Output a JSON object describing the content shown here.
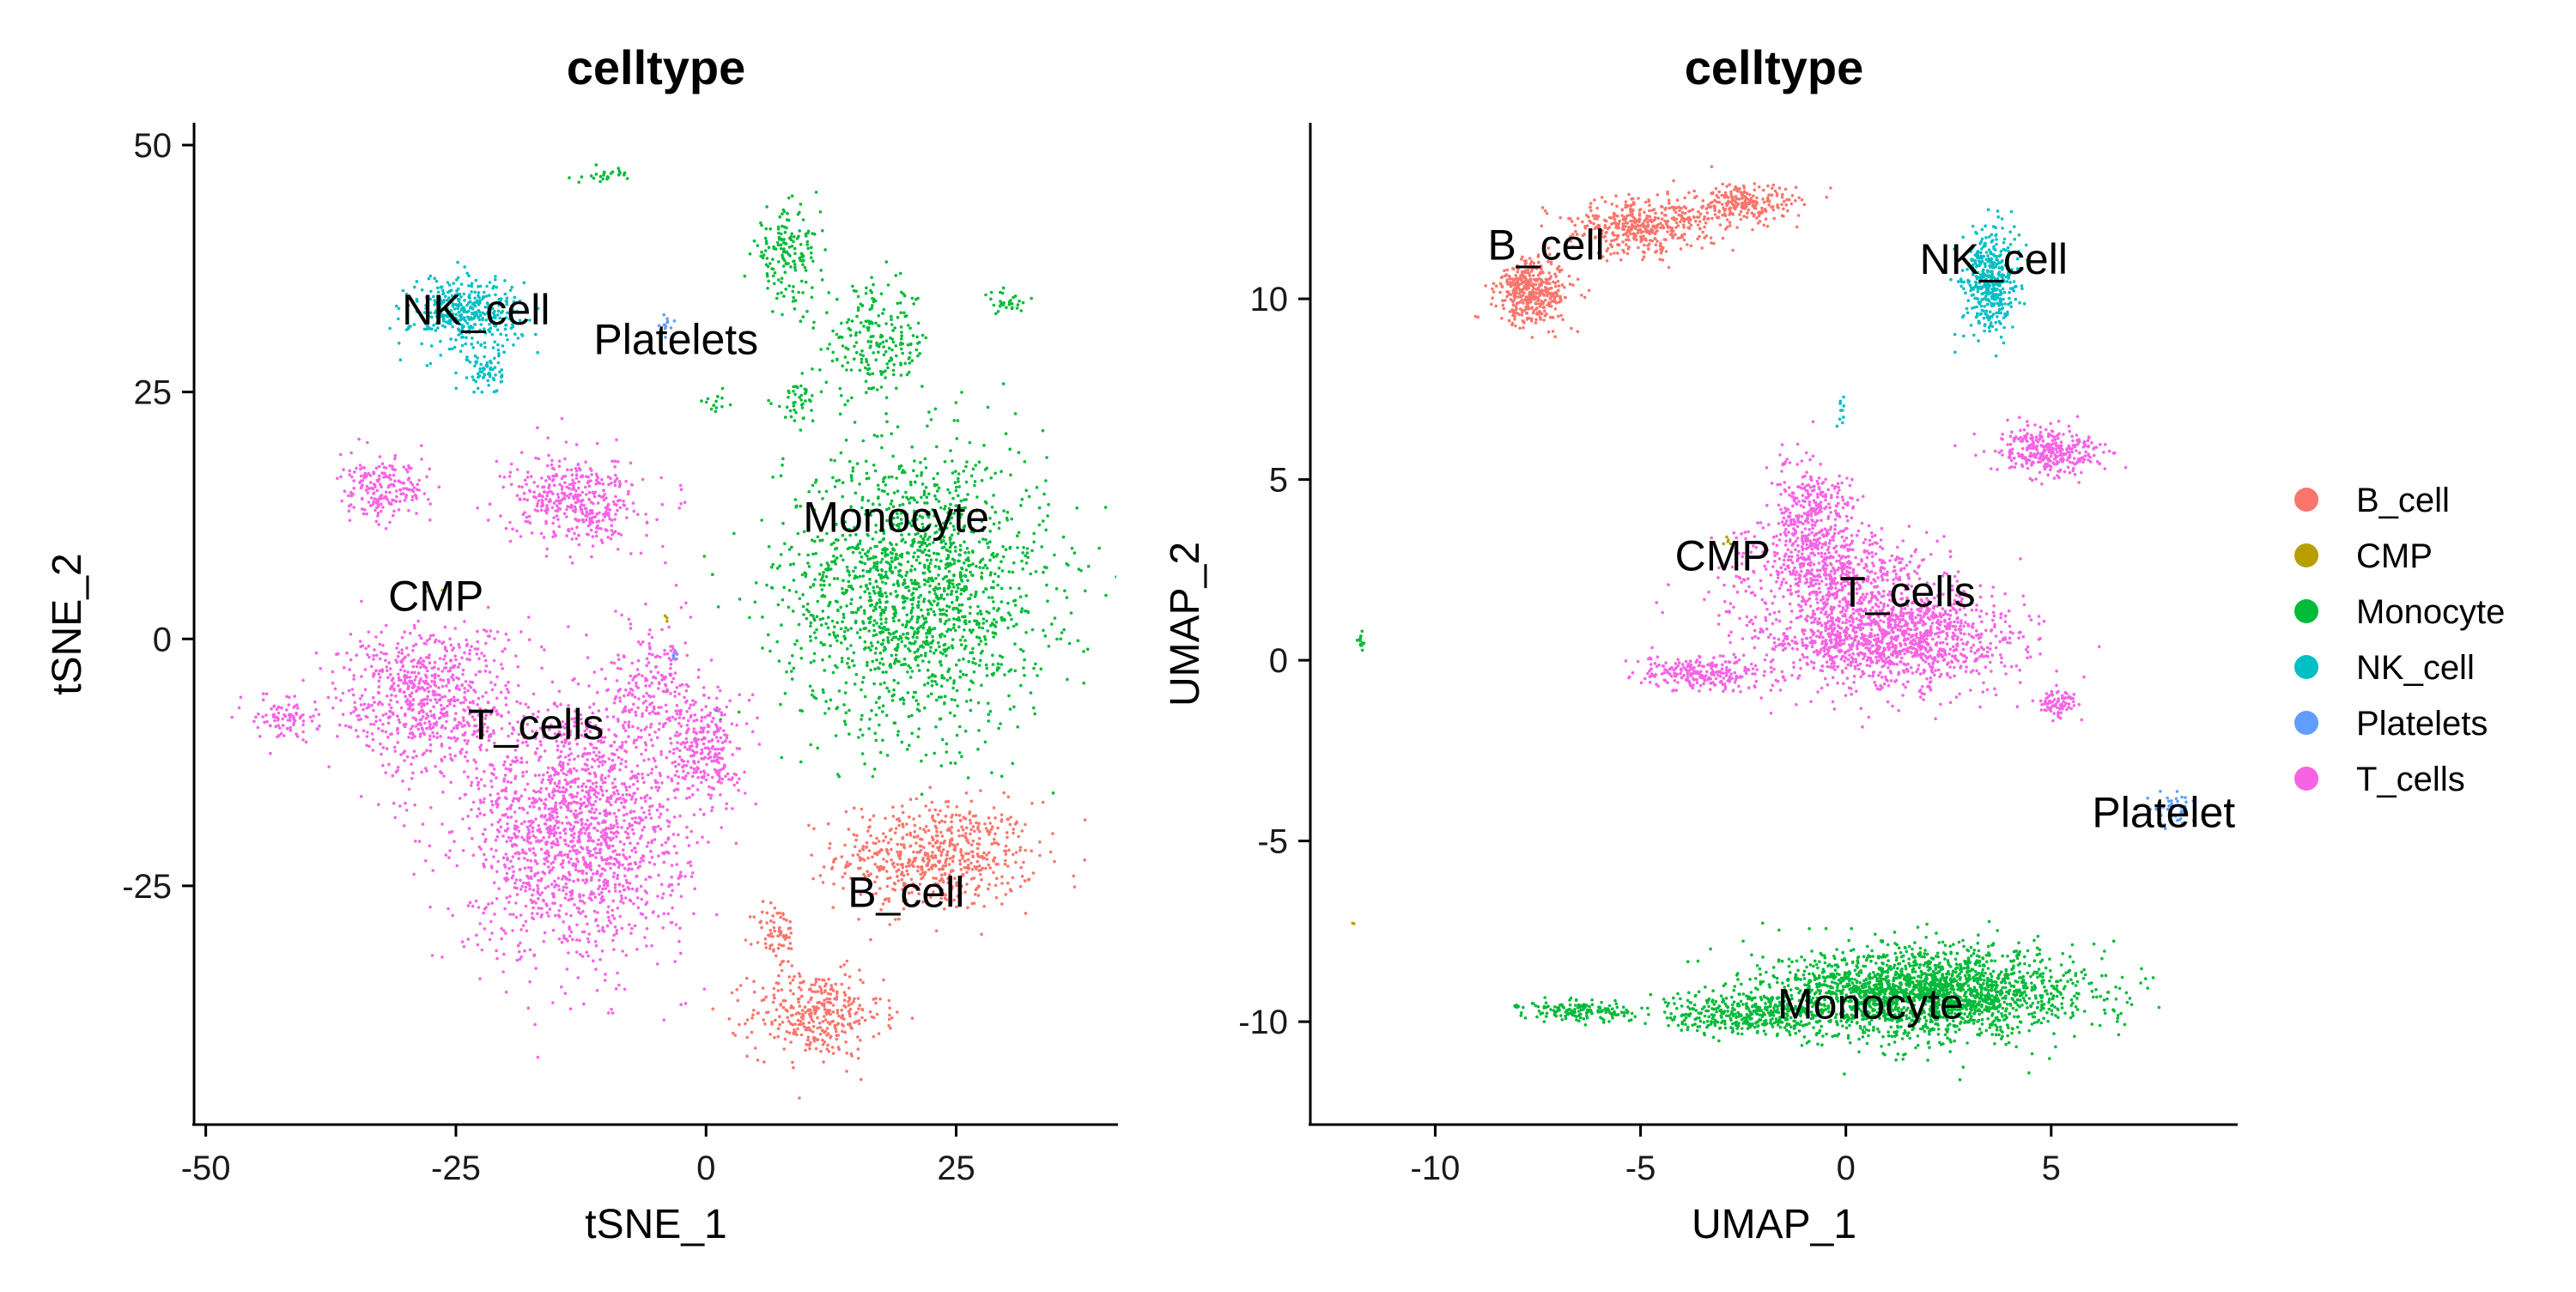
{
  "chart_data": [
    {
      "type": "scatter",
      "title": "celltype",
      "xlabel": "tSNE_1",
      "ylabel": "tSNE_2",
      "xlim": [
        -51,
        41
      ],
      "ylim": [
        -49,
        52
      ],
      "xticks": [
        -50,
        -25,
        0,
        25
      ],
      "yticks": [
        -25,
        0,
        25,
        50
      ],
      "xtick_labels": [
        "-50",
        "-25",
        "0",
        "25"
      ],
      "ytick_labels": [
        "-25",
        "0",
        "25",
        "50"
      ],
      "grid": false,
      "clusters": [
        {
          "label": "B_cell",
          "color": "#F8766D",
          "label_pos": [
            20,
            -26
          ],
          "blobs": [
            [
              23,
              -22,
              9,
              5,
              620
            ],
            [
              11,
              -38,
              6,
              4,
              360
            ],
            [
              7,
              -30,
              2,
              3,
              70
            ]
          ]
        },
        {
          "label": "CMP",
          "color": "#B79F00",
          "label_pos": [
            -27,
            4
          ],
          "blobs": [
            [
              -26,
              5,
              0.4,
              0.4,
              4
            ],
            [
              -4,
              2,
              0.3,
              0.3,
              3
            ]
          ]
        },
        {
          "label": "Monocyte",
          "color": "#00BA38",
          "label_pos": [
            19,
            12
          ],
          "blobs": [
            [
              21,
              5,
              12,
              13,
              1700
            ],
            [
              8,
              39,
              3,
              4,
              160
            ],
            [
              17,
              30,
              5,
              5,
              220
            ],
            [
              9,
              24,
              2,
              2,
              40
            ],
            [
              30,
              34,
              2,
              1,
              30
            ],
            [
              1,
              24,
              1,
              1,
              15
            ],
            [
              -10,
              47,
              2,
              0.6,
              25
            ]
          ]
        },
        {
          "label": "NK_cell",
          "color": "#00BFC4",
          "label_pos": [
            -23,
            33
          ],
          "blobs": [
            [
              -24,
              33,
              5,
              3.5,
              380
            ],
            [
              -22,
              27,
              1.5,
              2,
              60
            ]
          ]
        },
        {
          "label": "Platelets",
          "color": "#619CFF",
          "label_pos": [
            -3,
            30
          ],
          "blobs": [
            [
              -4,
              32,
              0.5,
              1,
              12
            ],
            [
              -3,
              -2,
              0.3,
              0.8,
              8
            ]
          ]
        },
        {
          "label": "T_cells",
          "color": "#F564E3",
          "label_pos": [
            -17,
            -9
          ],
          "blobs": [
            [
              -13,
              -19,
              10,
              12,
              1700
            ],
            [
              -28,
              -6,
              8,
              7,
              700
            ],
            [
              -13,
              14,
              6,
              4,
              420
            ],
            [
              -32,
              15,
              4,
              3,
              200
            ],
            [
              0,
              -11,
              3,
              5,
              240
            ],
            [
              -42,
              -8,
              3,
              2,
              90
            ],
            [
              -5,
              -5,
              4,
              6,
              200
            ]
          ]
        }
      ]
    },
    {
      "type": "scatter",
      "title": "celltype",
      "xlabel": "UMAP_1",
      "ylabel": "UMAP_2",
      "xlim": [
        -13,
        9.5
      ],
      "ylim": [
        -12.8,
        14.8
      ],
      "xticks": [
        -10,
        -5,
        0,
        5
      ],
      "yticks": [
        -10,
        -5,
        0,
        5,
        10
      ],
      "xtick_labels": [
        "-10",
        "-5",
        "0",
        "5"
      ],
      "ytick_labels": [
        "-10",
        "-5",
        "0",
        "5",
        "10"
      ],
      "grid": false,
      "clusters": [
        {
          "label": "B_cell",
          "color": "#F8766D",
          "label_pos": [
            -7.3,
            11.4
          ],
          "blobs": [
            [
              -7.6,
              10.2,
              0.8,
              0.8,
              420
            ],
            [
              -5,
              12,
              1.6,
              0.7,
              420
            ],
            [
              -2.5,
              12.6,
              1.2,
              0.5,
              240
            ]
          ]
        },
        {
          "label": "CMP",
          "color": "#B79F00",
          "label_pos": [
            -3,
            2.8
          ],
          "blobs": [
            [
              -2.9,
              3.3,
              0.1,
              0.1,
              5
            ],
            [
              -12,
              -7.3,
              0.05,
              0.05,
              2
            ]
          ]
        },
        {
          "label": "Monocyte",
          "color": "#00BA38",
          "label_pos": [
            0.6,
            -9.6
          ],
          "blobs": [
            [
              2,
              -9.2,
              3.4,
              1.1,
              2200
            ],
            [
              -2.5,
              -9.8,
              2.2,
              0.5,
              380
            ],
            [
              -6.5,
              -9.7,
              1.2,
              0.25,
              150
            ],
            [
              -11.8,
              0.5,
              0.12,
              0.2,
              12
            ]
          ]
        },
        {
          "label": "NK_cell",
          "color": "#00BFC4",
          "label_pos": [
            3.6,
            11
          ],
          "blobs": [
            [
              3.5,
              10.5,
              0.6,
              1.3,
              420
            ],
            [
              -0.1,
              6.9,
              0.1,
              0.4,
              10
            ]
          ]
        },
        {
          "label": "Platelets",
          "color": "#619CFF",
          "label_pos": [
            8,
            -4.3
          ],
          "blobs": [
            [
              8,
              -4.1,
              0.5,
              0.5,
              40
            ]
          ]
        },
        {
          "label": "T_cells",
          "color": "#F564E3",
          "label_pos": [
            1.5,
            1.8
          ],
          "blobs": [
            [
              1,
              0.6,
              2.8,
              1.3,
              1400
            ],
            [
              -0.8,
              4,
              1,
              1.4,
              340
            ],
            [
              -3.5,
              -0.4,
              1.4,
              0.4,
              240
            ],
            [
              5,
              5.8,
              1.2,
              0.6,
              340
            ],
            [
              5.2,
              -1.2,
              0.4,
              0.3,
              80
            ],
            [
              -0.5,
              2.5,
              2,
              1,
              500
            ]
          ]
        }
      ]
    }
  ],
  "legend": {
    "placement": "right",
    "items": [
      {
        "label": "B_cell",
        "color": "#F8766D"
      },
      {
        "label": "CMP",
        "color": "#B79F00"
      },
      {
        "label": "Monocyte",
        "color": "#00BA38"
      },
      {
        "label": "NK_cell",
        "color": "#00BFC4"
      },
      {
        "label": "Platelets",
        "color": "#619CFF"
      },
      {
        "label": "T_cells",
        "color": "#F564E3"
      }
    ]
  }
}
